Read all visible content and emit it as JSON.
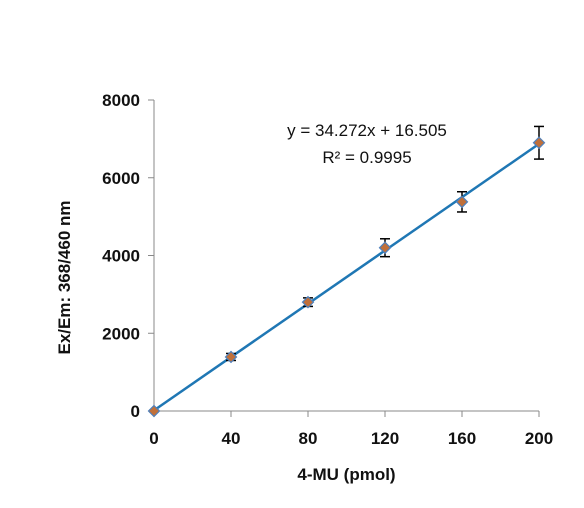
{
  "chart_data": {
    "type": "scatter",
    "title": "",
    "xlabel": "4-MU (pmol)",
    "ylabel": "Ex/Em: 368/460 nm",
    "xlim": [
      0,
      200
    ],
    "ylim": [
      0,
      8000
    ],
    "x_ticks": [
      0,
      40,
      80,
      120,
      160,
      200
    ],
    "y_ticks": [
      0,
      2000,
      4000,
      6000,
      8000
    ],
    "x_tick_labels": [
      "0",
      "40",
      "80",
      "120",
      "160",
      "200"
    ],
    "y_tick_labels": [
      "0",
      "2000",
      "4000",
      "6000",
      "8000"
    ],
    "grid": false,
    "legend": "none",
    "series": [
      {
        "x": [
          0,
          40,
          80,
          120,
          160,
          200
        ],
        "y": [
          0,
          1390,
          2800,
          4200,
          5380,
          6900
        ],
        "error": [
          20,
          90,
          110,
          230,
          260,
          420
        ],
        "marker_color": "#c0703a",
        "marker_edge_color": "#4f81bd",
        "error_bar_color": "#000000"
      }
    ],
    "trendline": {
      "type": "linear",
      "slope": 34.272,
      "intercept": 16.505,
      "r_squared": 0.9995,
      "color": "#1f77b4"
    },
    "annotations": [
      "y = 34.272x + 16.505",
      "R² = 0.9995"
    ]
  }
}
